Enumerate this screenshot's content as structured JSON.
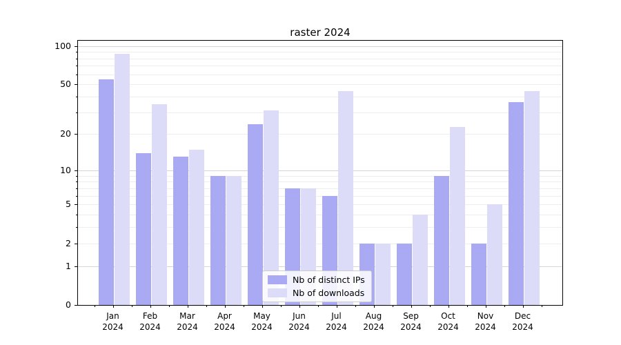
{
  "chart_data": {
    "type": "bar",
    "title": "raster 2024",
    "categories": [
      "Jan",
      "Feb",
      "Mar",
      "Apr",
      "May",
      "Jun",
      "Jul",
      "Aug",
      "Sep",
      "Oct",
      "Nov",
      "Dec"
    ],
    "category_year": "2024",
    "series": [
      {
        "name": "Nb of distinct IPs",
        "color": "#a9a9f4",
        "values": [
          55,
          14,
          13,
          9,
          24,
          7,
          6,
          2,
          2,
          9,
          2,
          36
        ]
      },
      {
        "name": "Nb of downloads",
        "color": "#dcdcf8",
        "values": [
          87,
          35,
          15,
          9,
          31,
          7,
          44,
          2,
          4,
          23,
          5,
          44
        ]
      }
    ],
    "yscale": "log1p",
    "ylim": [
      0,
      100
    ],
    "yticks": [
      0,
      1,
      2,
      5,
      10,
      20,
      50,
      100
    ],
    "yticks_minor": [
      3,
      4,
      6,
      7,
      8,
      9,
      30,
      40,
      60,
      70,
      80,
      90
    ],
    "grid": "horizontal",
    "major_grid_color": "#d4d4d4",
    "minor_grid_color": "#ededed",
    "legend_position": "lower-center"
  }
}
